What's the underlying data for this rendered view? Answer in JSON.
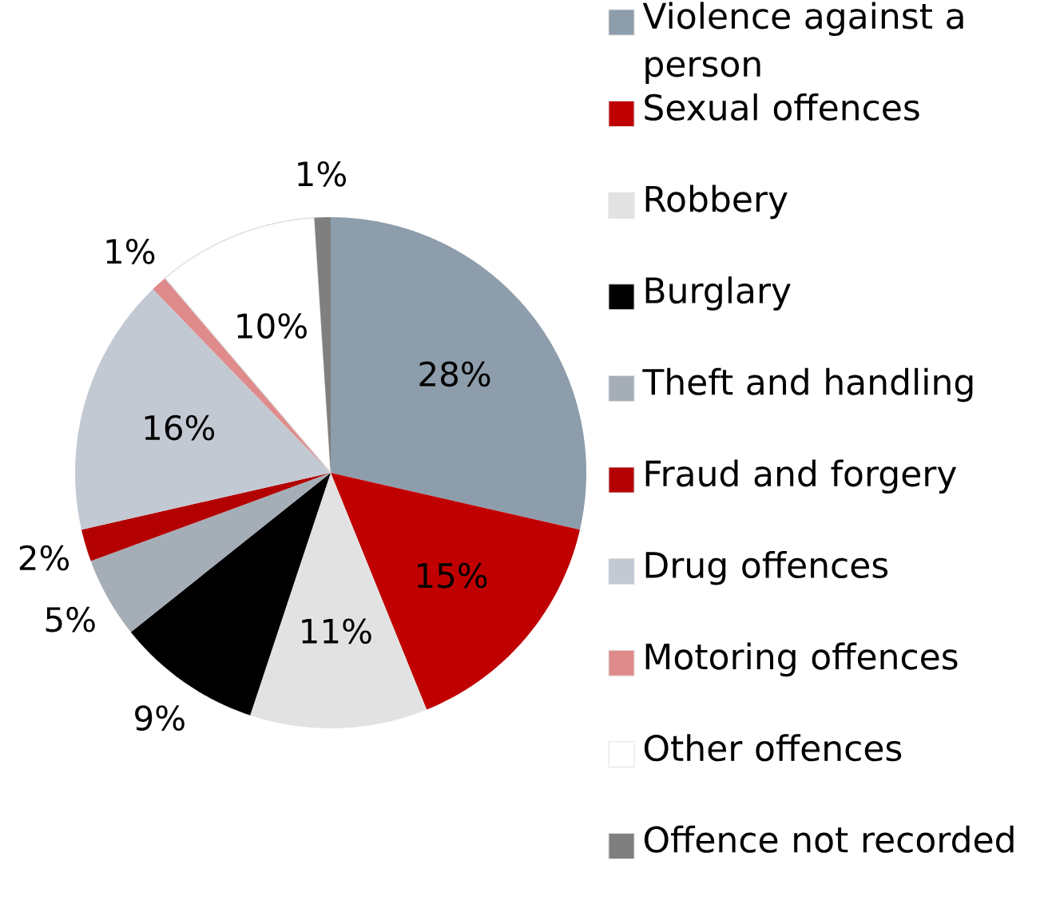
{
  "chart_data": {
    "type": "pie",
    "categories": [
      "Violence against a person",
      "Sexual offences",
      "Robbery",
      "Burglary",
      "Theft and handling",
      "Fraud and forgery",
      "Drug offences",
      "Motoring offences",
      "Other offences",
      "Offence not recorded"
    ],
    "values": [
      28,
      15,
      11,
      9,
      5,
      2,
      16,
      1,
      10,
      1
    ],
    "value_labels": [
      "28%",
      "15%",
      "11%",
      "9%",
      "5%",
      "2%",
      "16%",
      "1%",
      "10%",
      "1%"
    ],
    "colors": [
      "#8d9dab",
      "#c00000",
      "#e2e2e2",
      "#000000",
      "#a5aeb7",
      "#b30000",
      "#c3c9d3",
      "#e08b8b",
      "#ffffff",
      "#7f7f7f"
    ],
    "legend": "right"
  }
}
